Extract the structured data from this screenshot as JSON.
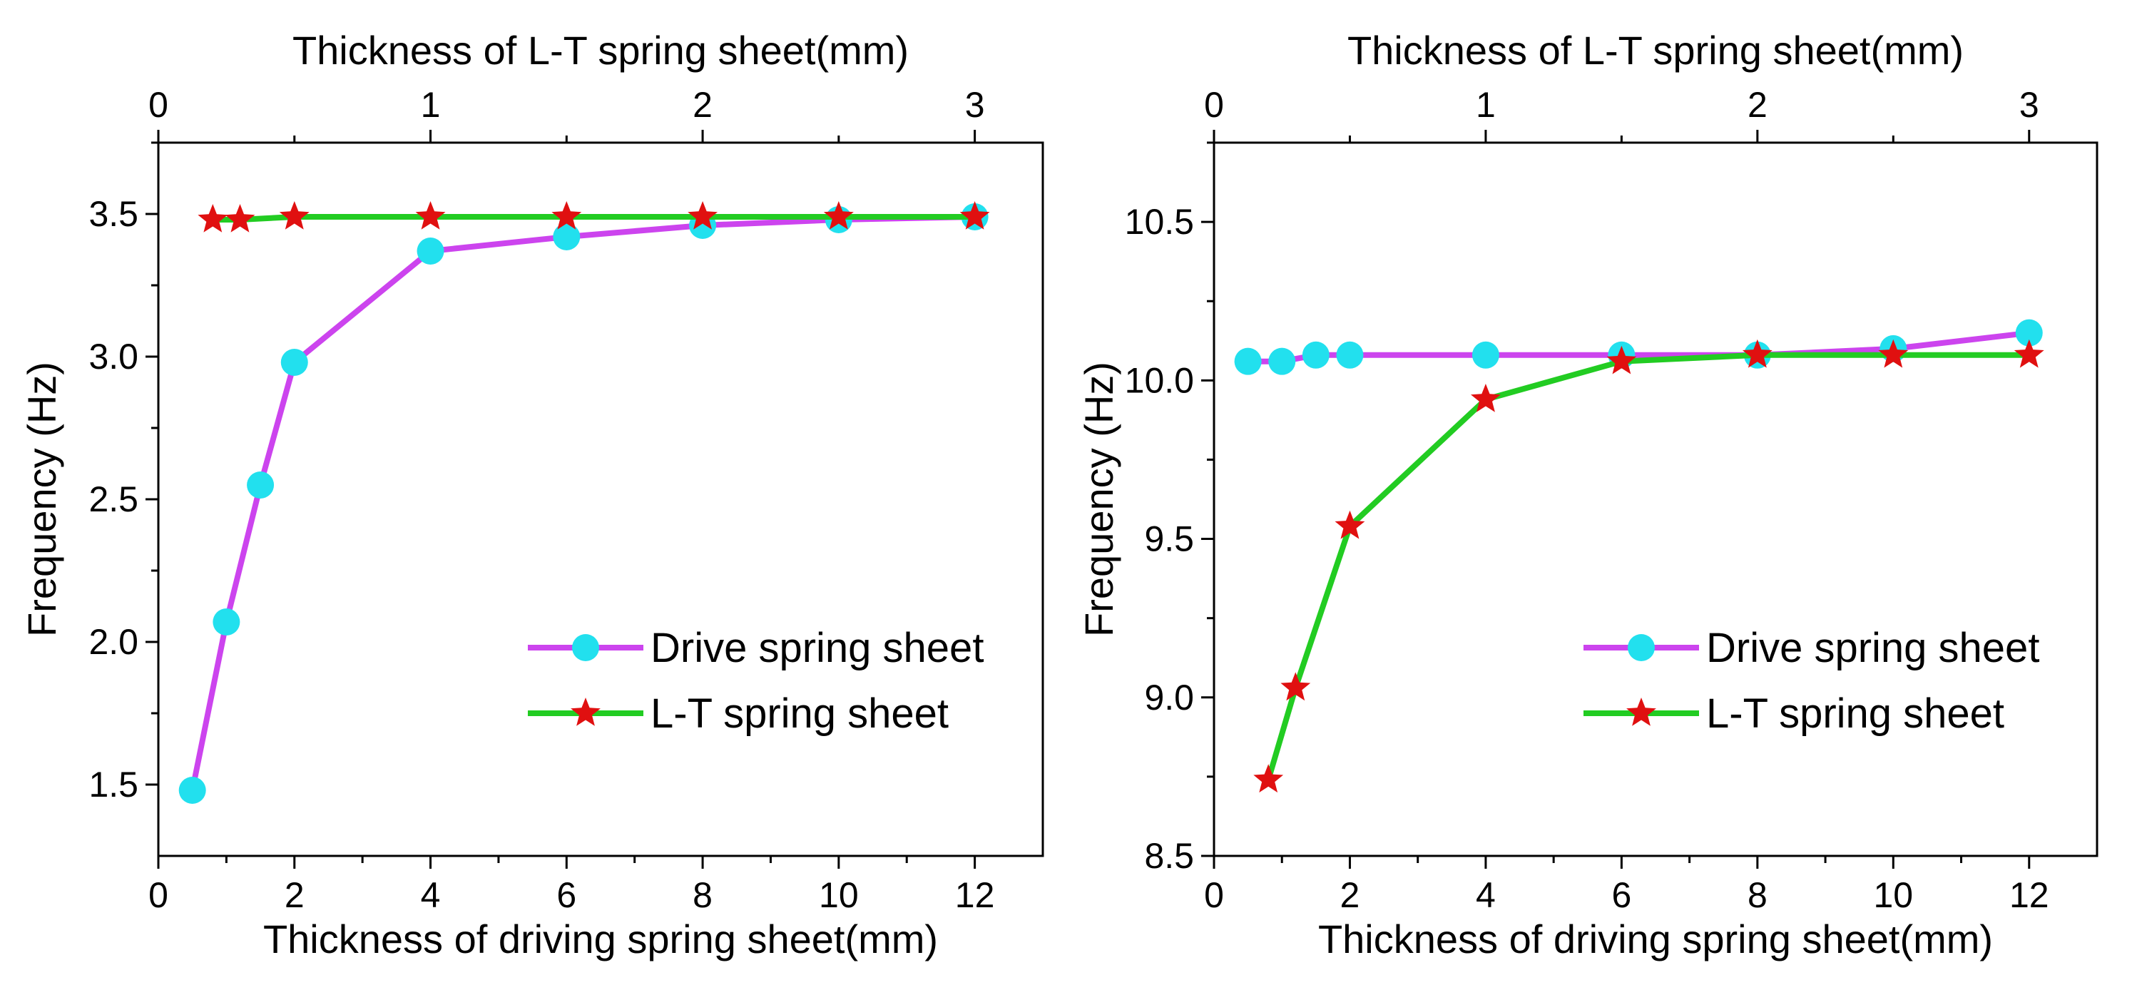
{
  "chart_data": [
    {
      "type": "line",
      "id": "left",
      "xlabel": "Thickness of driving spring sheet(mm)",
      "x2label": "Thickness of L-T spring sheet(mm)",
      "ylabel": "Frequency (Hz)",
      "xlim": [
        0,
        13
      ],
      "x2lim": [
        0,
        3.25
      ],
      "ylim": [
        1.25,
        3.75
      ],
      "xticks": [
        0,
        2,
        4,
        6,
        8,
        10,
        12
      ],
      "x2ticks": [
        0,
        1,
        2,
        3
      ],
      "yticks": [
        1.5,
        2.0,
        2.5,
        3.0,
        3.5
      ],
      "ytick_labels": [
        "1.5",
        "2.0",
        "2.5",
        "3.0",
        "3.5"
      ],
      "legend_position": "lower-right",
      "series": [
        {
          "name": "Drive spring sheet",
          "axis": "bottom",
          "color": "#cc44ee",
          "marker": "circle",
          "marker_color": "#22e0ee",
          "x": [
            0.5,
            1,
            1.5,
            2,
            4,
            6,
            8,
            10,
            12
          ],
          "y": [
            1.48,
            2.07,
            2.55,
            2.98,
            3.37,
            3.42,
            3.46,
            3.48,
            3.49
          ]
        },
        {
          "name": "L-T spring sheet",
          "axis": "top",
          "color": "#22cc22",
          "marker": "star",
          "marker_color": "#e01010",
          "x": [
            0.2,
            0.3,
            0.5,
            1,
            1.5,
            2,
            2.5,
            3
          ],
          "y": [
            3.48,
            3.48,
            3.49,
            3.49,
            3.49,
            3.49,
            3.49,
            3.49
          ]
        }
      ]
    },
    {
      "type": "line",
      "id": "right",
      "xlabel": "Thickness of driving spring sheet(mm)",
      "x2label": "Thickness of L-T spring sheet(mm)",
      "ylabel": "Frequency (Hz)",
      "xlim": [
        0,
        13
      ],
      "x2lim": [
        0,
        3.25
      ],
      "ylim": [
        8.5,
        10.75
      ],
      "xticks": [
        0,
        2,
        4,
        6,
        8,
        10,
        12
      ],
      "x2ticks": [
        0,
        1,
        2,
        3
      ],
      "yticks": [
        8.5,
        9.0,
        9.5,
        10.0,
        10.5
      ],
      "ytick_labels": [
        "8.5",
        "9.0",
        "9.5",
        "10.0",
        "10.5"
      ],
      "legend_position": "lower-right",
      "series": [
        {
          "name": "Drive spring sheet",
          "axis": "bottom",
          "color": "#cc44ee",
          "marker": "circle",
          "marker_color": "#22e0ee",
          "x": [
            0.5,
            1,
            1.5,
            2,
            4,
            6,
            8,
            10,
            12
          ],
          "y": [
            10.06,
            10.06,
            10.08,
            10.08,
            10.08,
            10.08,
            10.08,
            10.1,
            10.15
          ]
        },
        {
          "name": "L-T spring sheet",
          "axis": "top",
          "color": "#22cc22",
          "marker": "star",
          "marker_color": "#e01010",
          "x": [
            0.2,
            0.3,
            0.5,
            1,
            1.5,
            2,
            2.5,
            3
          ],
          "y": [
            8.74,
            9.03,
            9.54,
            9.94,
            10.06,
            10.08,
            10.08,
            10.08
          ]
        }
      ]
    }
  ]
}
